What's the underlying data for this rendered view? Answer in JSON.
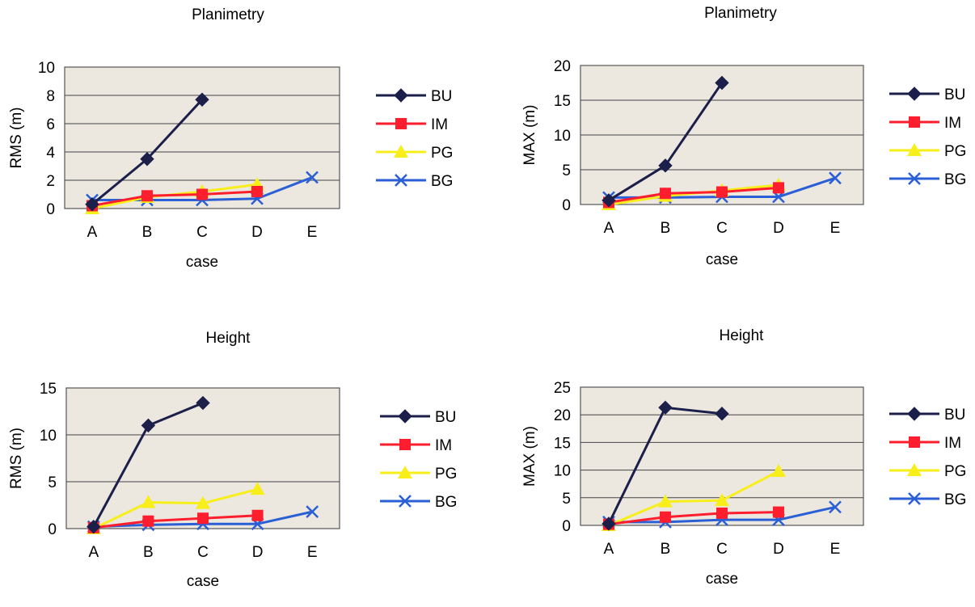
{
  "colors": {
    "BU": "#1b1f4a",
    "IM": "#ff1e2e",
    "PG": "#f7ee1a",
    "BG": "#2a5fd6",
    "plot_bg": "#ece8df",
    "grid": "#444444"
  },
  "chart_data": [
    {
      "type": "line",
      "title": "Planimetry",
      "xlabel": "case",
      "ylabel": "RMS (m)",
      "categories": [
        "A",
        "B",
        "C",
        "D",
        "E"
      ],
      "ylim": [
        0,
        10
      ],
      "yticks": [
        "0",
        "2",
        "4",
        "6",
        "8",
        "10"
      ],
      "grid": true,
      "legend": "right",
      "series": [
        {
          "name": "BU",
          "marker": "diamond",
          "values": [
            0.3,
            3.5,
            7.7,
            null,
            null
          ]
        },
        {
          "name": "IM",
          "marker": "square",
          "values": [
            0.2,
            0.9,
            1.0,
            1.2,
            null
          ]
        },
        {
          "name": "PG",
          "marker": "triangle",
          "values": [
            0.0,
            0.8,
            1.2,
            1.7,
            null
          ]
        },
        {
          "name": "BG",
          "marker": "x",
          "values": [
            0.6,
            0.6,
            0.6,
            0.7,
            2.2
          ]
        }
      ]
    },
    {
      "type": "line",
      "title": "Planimetry",
      "xlabel": "case",
      "ylabel": "MAX (m)",
      "categories": [
        "A",
        "B",
        "C",
        "D",
        "E"
      ],
      "ylim": [
        0,
        20
      ],
      "yticks": [
        "0",
        "5",
        "10",
        "15",
        "20"
      ],
      "grid": true,
      "legend": "right",
      "series": [
        {
          "name": "BU",
          "marker": "diamond",
          "values": [
            0.6,
            5.6,
            17.5,
            null,
            null
          ]
        },
        {
          "name": "IM",
          "marker": "square",
          "values": [
            0.3,
            1.6,
            1.8,
            2.4,
            null
          ]
        },
        {
          "name": "PG",
          "marker": "triangle",
          "values": [
            0.0,
            1.2,
            2.0,
            2.8,
            null
          ]
        },
        {
          "name": "BG",
          "marker": "x",
          "values": [
            1.0,
            1.0,
            1.1,
            1.1,
            3.8
          ]
        }
      ]
    },
    {
      "type": "line",
      "title": "Height",
      "xlabel": "case",
      "ylabel": "RMS (m)",
      "categories": [
        "A",
        "B",
        "C",
        "D",
        "E"
      ],
      "ylim": [
        0,
        15
      ],
      "yticks": [
        "0",
        "5",
        "10",
        "15"
      ],
      "grid": true,
      "legend": "right",
      "series": [
        {
          "name": "BU",
          "marker": "diamond",
          "values": [
            0.2,
            11.0,
            13.4,
            null,
            null
          ]
        },
        {
          "name": "IM",
          "marker": "square",
          "values": [
            0.1,
            0.8,
            1.1,
            1.4,
            null
          ]
        },
        {
          "name": "PG",
          "marker": "triangle",
          "values": [
            0.0,
            2.8,
            2.7,
            4.2,
            null
          ]
        },
        {
          "name": "BG",
          "marker": "x",
          "values": [
            0.2,
            0.4,
            0.5,
            0.5,
            1.8
          ]
        }
      ]
    },
    {
      "type": "line",
      "title": "Height",
      "xlabel": "case",
      "ylabel": "MAX (m)",
      "categories": [
        "A",
        "B",
        "C",
        "D",
        "E"
      ],
      "ylim": [
        0,
        25
      ],
      "yticks": [
        "0",
        "5",
        "10",
        "15",
        "20",
        "25"
      ],
      "grid": true,
      "legend": "right",
      "series": [
        {
          "name": "BU",
          "marker": "diamond",
          "values": [
            0.3,
            21.3,
            20.2,
            null,
            null
          ]
        },
        {
          "name": "IM",
          "marker": "square",
          "values": [
            0.2,
            1.5,
            2.2,
            2.4,
            null
          ]
        },
        {
          "name": "PG",
          "marker": "triangle",
          "values": [
            0.0,
            4.3,
            4.5,
            9.8,
            null
          ]
        },
        {
          "name": "BG",
          "marker": "x",
          "values": [
            0.6,
            0.6,
            1.0,
            1.0,
            3.3
          ]
        }
      ]
    }
  ]
}
